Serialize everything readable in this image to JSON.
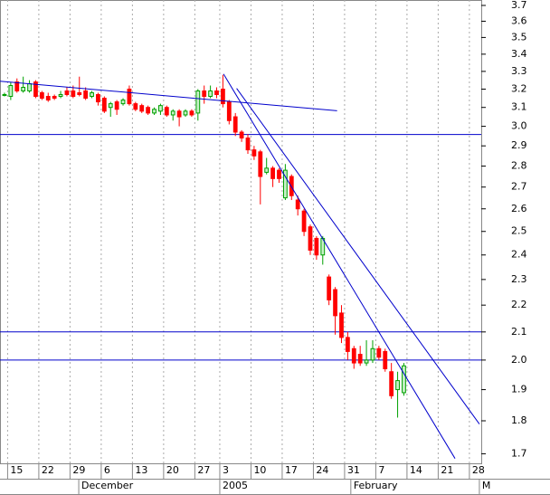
{
  "chart_data": {
    "type": "candlestick",
    "log_scale": true,
    "grid": true,
    "up_color": "#00a000",
    "down_color": "#ff0000",
    "line_color": "#0000cc",
    "grid_color": "#aaaaaa",
    "open": [
      3.17,
      3.16,
      3.24,
      3.19,
      3.19,
      3.24,
      3.18,
      3.16,
      3.16,
      3.16,
      3.19,
      3.19,
      3.18,
      3.19,
      3.16,
      3.17,
      3.15,
      3.1,
      3.13,
      3.12,
      3.2,
      3.12,
      3.11,
      3.1,
      3.07,
      3.08,
      3.1,
      3.06,
      3.08,
      3.06,
      3.08,
      3.07,
      3.19,
      3.16,
      3.19,
      3.2,
      3.13,
      3.05,
      2.97,
      2.94,
      2.88,
      2.87,
      2.77,
      2.79,
      2.78,
      2.65,
      2.75,
      2.64,
      2.59,
      2.52,
      2.47,
      2.4,
      2.31,
      2.26,
      2.17,
      2.08,
      2.04,
      2.02,
      1.99,
      2.0,
      2.04,
      2.03,
      1.96,
      1.9,
      1.89
    ],
    "high": [
      3.18,
      3.24,
      3.26,
      3.27,
      3.25,
      3.25,
      3.19,
      3.18,
      3.17,
      3.19,
      3.21,
      3.22,
      3.27,
      3.21,
      3.19,
      3.18,
      3.16,
      3.13,
      3.14,
      3.15,
      3.22,
      3.13,
      3.12,
      3.11,
      3.1,
      3.12,
      3.11,
      3.09,
      3.09,
      3.09,
      3.09,
      3.2,
      3.22,
      3.22,
      3.21,
      3.28,
      3.14,
      3.07,
      2.98,
      2.96,
      2.9,
      2.88,
      2.84,
      2.8,
      2.79,
      2.81,
      2.76,
      2.66,
      2.6,
      2.53,
      2.48,
      2.48,
      2.32,
      2.27,
      2.2,
      2.1,
      2.05,
      2.05,
      2.07,
      2.07,
      2.05,
      2.04,
      1.99,
      1.96,
      1.99
    ],
    "low": [
      3.16,
      3.14,
      3.18,
      3.18,
      3.18,
      3.15,
      3.14,
      3.13,
      3.14,
      3.15,
      3.16,
      3.15,
      3.16,
      3.14,
      3.15,
      3.11,
      3.07,
      3.05,
      3.06,
      3.11,
      3.11,
      3.08,
      3.07,
      3.06,
      3.06,
      3.06,
      3.05,
      3.03,
      3.0,
      3.05,
      3.05,
      3.03,
      3.12,
      3.15,
      3.15,
      3.1,
      3.01,
      2.95,
      2.92,
      2.86,
      2.83,
      2.62,
      2.76,
      2.7,
      2.72,
      2.64,
      2.64,
      2.57,
      2.48,
      2.4,
      2.38,
      2.36,
      2.2,
      2.09,
      2.06,
      2.0,
      1.97,
      1.98,
      1.98,
      1.99,
      2.0,
      1.96,
      1.87,
      1.81,
      1.88
    ],
    "close": [
      3.17,
      3.22,
      3.19,
      3.21,
      3.23,
      3.16,
      3.15,
      3.14,
      3.15,
      3.17,
      3.17,
      3.16,
      3.17,
      3.15,
      3.18,
      3.13,
      3.08,
      3.12,
      3.09,
      3.14,
      3.12,
      3.09,
      3.08,
      3.07,
      3.09,
      3.11,
      3.06,
      3.08,
      3.05,
      3.08,
      3.06,
      3.19,
      3.16,
      3.19,
      3.17,
      3.12,
      3.03,
      2.97,
      2.94,
      2.88,
      2.85,
      2.75,
      2.79,
      2.74,
      2.74,
      2.78,
      2.66,
      2.6,
      2.5,
      2.42,
      2.4,
      2.47,
      2.22,
      2.16,
      2.08,
      2.03,
      1.99,
      1.99,
      2.0,
      2.04,
      2.01,
      1.97,
      1.88,
      1.93,
      1.98
    ],
    "xlim": [
      -0.72,
      76.4
    ],
    "ylim": [
      1.672,
      3.735
    ],
    "yticks": [
      3.7,
      3.6,
      3.5,
      3.4,
      3.3,
      3.2,
      3.1,
      {
        "value": 3,
        "label": "3.0"
      },
      2.9,
      2.8,
      2.7,
      2.6,
      2.5,
      2.4,
      2.3,
      2.2,
      2.1,
      {
        "value": 2,
        "label": "2.0"
      },
      1.9,
      1.8,
      1.7
    ],
    "xticks": [
      {
        "value": 0.5,
        "label": "15"
      },
      {
        "value": 5.5,
        "label": "22"
      },
      {
        "value": 10.5,
        "label": "29"
      },
      {
        "value": 15.5,
        "label": "6"
      },
      {
        "value": 20.5,
        "label": "13"
      },
      {
        "value": 25.5,
        "label": "20"
      },
      {
        "value": 30.5,
        "label": "27"
      },
      {
        "value": 34.5,
        "label": "3"
      },
      {
        "value": 39.5,
        "label": "10"
      },
      {
        "value": 44.5,
        "label": "17"
      },
      {
        "value": 49.5,
        "label": "24"
      },
      {
        "value": 54.5,
        "label": "31"
      },
      {
        "value": 59.5,
        "label": "7"
      },
      {
        "value": 64.5,
        "label": "14"
      },
      {
        "value": 69.5,
        "label": "21"
      },
      {
        "value": 74.5,
        "label": "28"
      }
    ],
    "months": [
      {
        "value": 11.9,
        "label": "December"
      },
      {
        "value": 34.5,
        "label": "2005"
      },
      {
        "value": 55.5,
        "label": "February"
      },
      {
        "value": 76.1,
        "label": "M"
      }
    ],
    "hlines": [
      2.958,
      2.1,
      2.0
    ],
    "lines": [
      {
        "x": [
          -0.72,
          53.3
        ],
        "y": [
          3.244,
          3.082
        ]
      },
      {
        "x": [
          35.1,
          72.2
        ],
        "y": [
          3.285,
          1.686
        ]
      },
      {
        "x": [
          37.2,
          76.1
        ],
        "y": [
          3.204,
          1.79
        ]
      }
    ]
  }
}
